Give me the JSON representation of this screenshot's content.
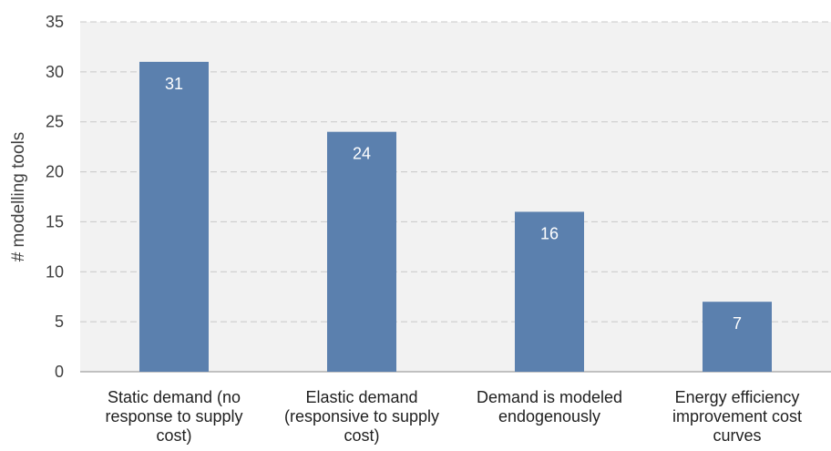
{
  "chart_data": {
    "type": "bar",
    "title": "",
    "xlabel": "",
    "ylabel": "# modelling tools",
    "ylim": [
      0,
      35
    ],
    "yticks": [
      0,
      5,
      10,
      15,
      20,
      25,
      30,
      35
    ],
    "grid": true,
    "categories": [
      [
        "Static demand (no",
        "response to supply",
        "cost)"
      ],
      [
        "Elastic demand",
        "(responsive to supply",
        "cost)"
      ],
      [
        "Demand is modeled",
        "endogenously"
      ],
      [
        "Energy efficiency",
        "improvement cost",
        "curves"
      ]
    ],
    "values": [
      31,
      24,
      16,
      7
    ],
    "colors": {
      "bar": "#5b80ae",
      "plot_background": "#f2f2f2",
      "grid": "#c8c8c8",
      "data_label": "#ffffff"
    }
  }
}
